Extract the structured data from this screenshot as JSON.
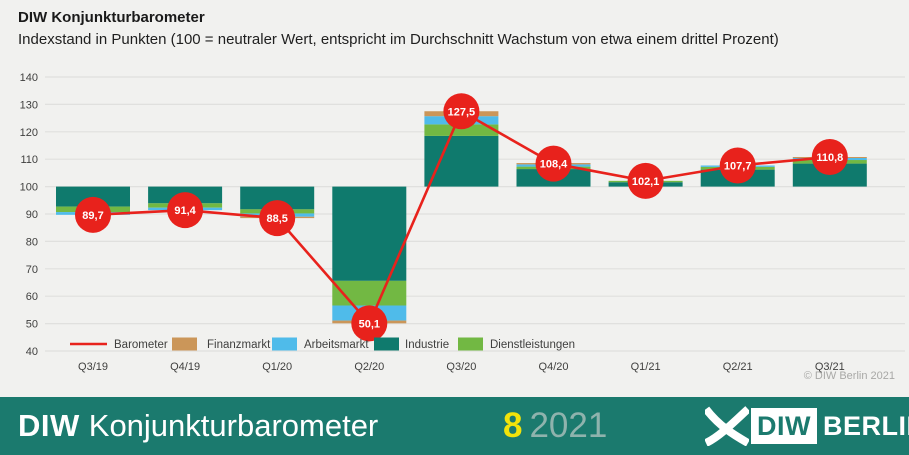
{
  "header": {
    "title": "DIW Konjunkturbarometer",
    "subtitle": "Indexstand in Punkten (100 = neutraler Wert, entspricht im Durchschnitt Wachstum von etwa einem drittel Prozent)"
  },
  "chart_data": {
    "type": "bar",
    "subtype": "stacked-bar-with-line-overlay",
    "baseline": 100,
    "ylim": [
      40,
      140
    ],
    "y_ticks": [
      40,
      50,
      60,
      70,
      80,
      90,
      100,
      110,
      120,
      130,
      140
    ],
    "grid": "horizontal",
    "categories": [
      "Q3/19",
      "Q4/19",
      "Q1/20",
      "Q2/20",
      "Q3/20",
      "Q4/20",
      "Q1/21",
      "Q2/21",
      "Q3/21"
    ],
    "line_series": {
      "name": "Barometer",
      "color": "#e8221c",
      "values": [
        89.7,
        91.4,
        88.5,
        50.1,
        127.5,
        108.4,
        102.1,
        107.7,
        110.8
      ],
      "labels": [
        "89,7",
        "91,4",
        "88,5",
        "50,1",
        "127,5",
        "108,4",
        "102,1",
        "107,7",
        "110,8"
      ]
    },
    "bar_series": [
      {
        "name": "Industrie",
        "color": "#0f7a6d",
        "values": [
          -7.3,
          -6.1,
          -8.3,
          -34.4,
          18.5,
          6.4,
          1.6,
          6.2,
          8.4
        ]
      },
      {
        "name": "Dienstleistungen",
        "color": "#72b843",
        "values": [
          -2.0,
          -1.6,
          -1.5,
          -9.0,
          4.2,
          0.9,
          0.5,
          1.0,
          1.3
        ]
      },
      {
        "name": "Arbeitsmarkt",
        "color": "#4fbbea",
        "values": [
          -1.0,
          -0.9,
          -1.2,
          -5.5,
          3.0,
          0.8,
          0.0,
          0.5,
          0.8
        ]
      },
      {
        "name": "Finanzmarkt",
        "color": "#cb9659",
        "values": [
          0.0,
          0.0,
          -0.5,
          -1.0,
          1.8,
          0.5,
          0.0,
          0.0,
          0.3
        ]
      }
    ],
    "legend": [
      {
        "label": "Barometer",
        "type": "line",
        "color": "#e8221c"
      },
      {
        "label": "Finanzmarkt",
        "type": "rect",
        "color": "#cb9659"
      },
      {
        "label": "Arbeitsmarkt",
        "type": "rect",
        "color": "#4fbbea"
      },
      {
        "label": "Industrie",
        "type": "rect",
        "color": "#0f7a6d"
      },
      {
        "label": "Dienstleistungen",
        "type": "rect",
        "color": "#72b843"
      }
    ],
    "legend_position": "bottom-inside",
    "copyright": "© DIW Berlin 2021",
    "colors": {
      "background": "#f1f1ef",
      "gridline": "#e0e0de",
      "axis_text": "#3f3f3e",
      "copyright_text": "#a8a8a6"
    }
  },
  "footer": {
    "brand_bold": "DIW",
    "brand_regular": "Konjunkturbarometer",
    "issue_number": "8",
    "issue_year": "2021",
    "logo": {
      "diw": "DIW",
      "berlin": "BERLIN"
    },
    "colors": {
      "background": "#1b7a6e",
      "issue_number": "#f2e30a",
      "issue_year": "#8fb3ad",
      "logo_text": "#1b7a6e"
    }
  }
}
